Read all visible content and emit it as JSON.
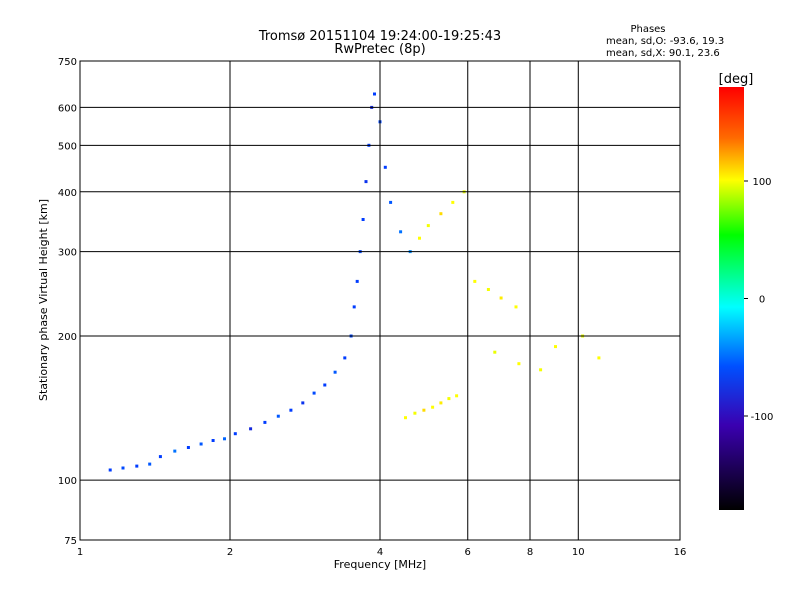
{
  "chart_data": {
    "type": "scatter",
    "title": "Tromsø 20151104 19:24:00-19:25:43",
    "subtitle": "RwPretec (8p)",
    "xlabel": "Frequency [MHz]",
    "ylabel": "Stationary phase Virtual Height [km]",
    "x_scale": "log",
    "y_scale": "log",
    "xlim": [
      1,
      16
    ],
    "ylim": [
      75,
      750
    ],
    "x_ticks": [
      1,
      2,
      4,
      6,
      8,
      10,
      16
    ],
    "y_ticks": [
      75,
      100,
      200,
      300,
      400,
      500,
      600,
      750
    ],
    "grid": true,
    "phases_box": {
      "title": "Phases",
      "line_o": "mean, sd,O: -93.6, 19.3",
      "line_x": "mean, sd,X:  90.1, 23.6"
    },
    "colorbar": {
      "label": "[deg]",
      "range": [
        -180,
        180
      ],
      "ticks": [
        100,
        0,
        -100
      ],
      "colormap": "rainbow (black-violet-blue-cyan-green-yellow-red)"
    },
    "series": [
      {
        "points": [
          [
            1.15,
            105,
            -100
          ],
          [
            1.22,
            106,
            -95
          ],
          [
            1.3,
            107,
            -100
          ],
          [
            1.38,
            108,
            -90
          ],
          [
            1.45,
            112,
            -100
          ],
          [
            1.55,
            115,
            -80
          ],
          [
            1.65,
            117,
            -100
          ],
          [
            1.75,
            119,
            -90
          ],
          [
            1.85,
            121,
            -100
          ],
          [
            1.95,
            122,
            -85
          ],
          [
            2.05,
            125,
            -100
          ],
          [
            2.2,
            128,
            -110
          ],
          [
            2.35,
            132,
            -100
          ],
          [
            2.5,
            136,
            -90
          ],
          [
            2.65,
            140,
            -100
          ],
          [
            2.8,
            145,
            -105
          ],
          [
            2.95,
            152,
            -95
          ],
          [
            3.1,
            158,
            -100
          ],
          [
            3.25,
            168,
            -90
          ],
          [
            3.4,
            180,
            -100
          ],
          [
            3.5,
            200,
            -95
          ],
          [
            3.55,
            230,
            -100
          ],
          [
            3.6,
            260,
            -100
          ],
          [
            3.65,
            300,
            -95
          ],
          [
            3.7,
            350,
            -100
          ],
          [
            3.75,
            420,
            -105
          ],
          [
            3.8,
            500,
            -100
          ],
          [
            3.85,
            600,
            -110
          ],
          [
            3.9,
            640,
            -100
          ],
          [
            4.0,
            560,
            -95
          ],
          [
            4.1,
            450,
            -100
          ],
          [
            4.2,
            380,
            -90
          ],
          [
            4.4,
            330,
            -80
          ],
          [
            4.6,
            300,
            -70
          ]
        ]
      },
      {
        "points": [
          [
            4.5,
            135,
            100
          ],
          [
            4.7,
            138,
            95
          ],
          [
            4.9,
            140,
            110
          ],
          [
            5.1,
            142,
            100
          ],
          [
            5.3,
            145,
            105
          ],
          [
            5.5,
            148,
            95
          ],
          [
            5.7,
            150,
            100
          ],
          [
            4.8,
            320,
            100
          ],
          [
            5.0,
            340,
            95
          ],
          [
            5.3,
            360,
            110
          ],
          [
            5.6,
            380,
            100
          ],
          [
            5.9,
            400,
            90
          ],
          [
            6.2,
            260,
            100
          ],
          [
            6.6,
            250,
            95
          ],
          [
            7.0,
            240,
            105
          ],
          [
            7.5,
            230,
            100
          ],
          [
            6.8,
            185,
            90
          ],
          [
            7.6,
            175,
            100
          ],
          [
            8.4,
            170,
            95
          ],
          [
            9.0,
            190,
            100
          ],
          [
            10.2,
            200,
            90
          ],
          [
            11.0,
            180,
            100
          ]
        ]
      }
    ]
  }
}
